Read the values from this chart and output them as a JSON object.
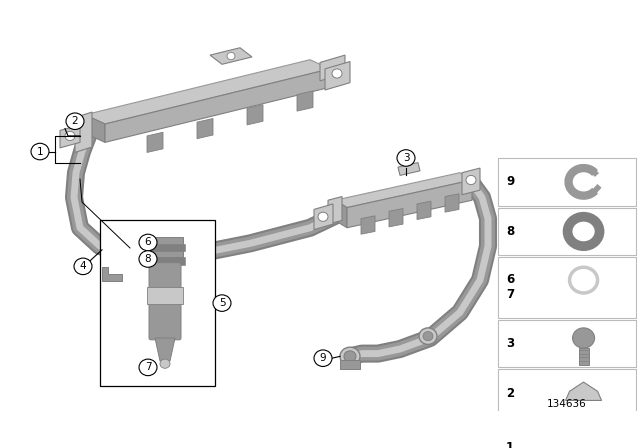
{
  "background_color": "#ffffff",
  "part_number": "134636",
  "fig_width": 6.4,
  "fig_height": 4.48,
  "dpi": 100,
  "gray1": "#b0b0b0",
  "gray2": "#989898",
  "gray3": "#c8c8c8",
  "gray4": "#808080",
  "gray5": "#d8d8d8",
  "dark": "#606060",
  "black": "#000000",
  "white": "#ffffff",
  "sidebar_box_color": "#e8e8e8",
  "callout_r": 0.018
}
